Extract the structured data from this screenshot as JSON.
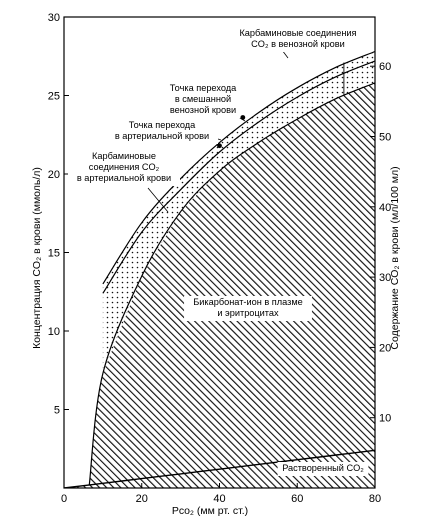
{
  "chart_data": {
    "type": "area",
    "x": [
      10,
      20,
      30,
      40,
      50,
      60,
      70,
      80
    ],
    "xlabel": "Pco₂ (мм рт. ст.)",
    "ylabel": "Концентрация CO₂ в крови (ммоль/л)",
    "y2label": "Содержание CO₂ в крови (мл/100 мл)",
    "xlim": [
      0,
      80
    ],
    "ylim": [
      0,
      30
    ],
    "y2lim": [
      0,
      67
    ],
    "x_ticks": [
      "0",
      "20",
      "40",
      "60",
      "80"
    ],
    "x_tick_values": [
      0,
      20,
      40,
      60,
      80
    ],
    "y_ticks": [
      "5",
      "10",
      "15",
      "20",
      "25",
      "30"
    ],
    "y_tick_values": [
      5,
      10,
      15,
      20,
      25,
      30
    ],
    "y2_ticks": [
      "10",
      "20",
      "30",
      "40",
      "50",
      "60"
    ],
    "y2_tick_values": [
      10,
      20,
      30,
      40,
      50,
      60
    ],
    "series": [
      {
        "values": [
          0.3,
          0.6,
          0.9,
          1.2,
          1.5,
          1.8,
          2.1,
          2.4
        ]
      },
      {
        "values": [
          7.3,
          13.5,
          17.6,
          20.2,
          22.0,
          23.5,
          24.8,
          25.8
        ]
      },
      {
        "values": [
          12.4,
          16.3,
          19.0,
          21.4,
          23.3,
          24.9,
          26.2,
          27.2
        ]
      },
      {
        "values": [
          13.0,
          16.9,
          19.7,
          22.0,
          23.9,
          25.5,
          26.8,
          27.8
        ]
      }
    ],
    "annotations": [
      {
        "lines": [
          "Карбаминовые соединения",
          "CO₂ в венозной крови"
        ]
      },
      {
        "lines": [
          "Точка перехода",
          "в смешанной",
          "венозной крови"
        ]
      },
      {
        "lines": [
          "Точка перехода",
          "в артериальной крови"
        ]
      },
      {
        "lines": [
          "Карбаминовые",
          "соединения CO₂",
          "в артериальной крови"
        ]
      },
      {
        "lines": [
          "Бикарбонат-ион в плазме",
          "и эритроцитах"
        ]
      },
      {
        "lines": [
          "Растворенный CO₂"
        ]
      }
    ],
    "markers": [
      {
        "x": 40,
        "y": 21.8
      },
      {
        "x": 46,
        "y": 23.6
      }
    ],
    "grid": false
  }
}
